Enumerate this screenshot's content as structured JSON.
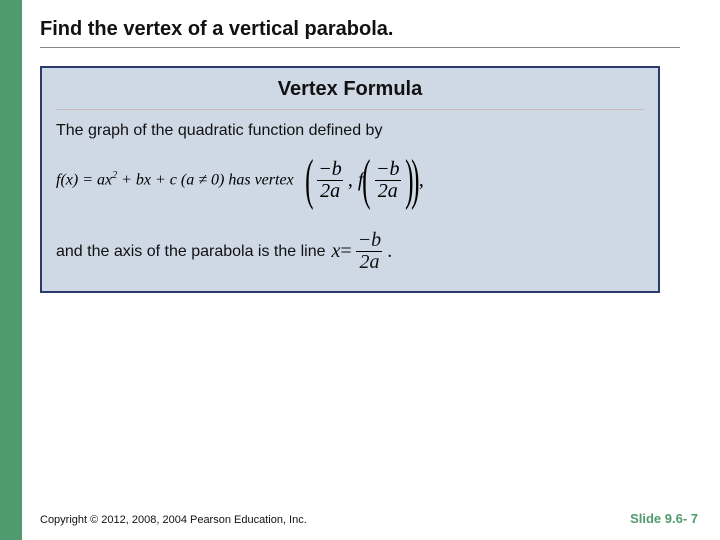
{
  "colors": {
    "accent_bar": "#4f9a6f",
    "box_bg": "#cfd9e6",
    "box_border": "#2a3a6a",
    "title_rule": "#c9b8b8",
    "text": "#111111",
    "slide_color": "#4f9a6f"
  },
  "title": "Find the vertex of a vertical parabola.",
  "box": {
    "heading": "Vertex Formula",
    "intro": "The graph of the quadratic function defined by",
    "func_prefix": "f(x) = ax",
    "func_suffix": " + bx + c (a ≠ 0) has vertex",
    "vertex": {
      "num1": "−b",
      "den1": "2a",
      "f_label": "f",
      "num2": "−b",
      "den2": "2a"
    },
    "axis_text": "and the axis of the parabola is the line",
    "axis_lhs": "x",
    "axis_eq": " = ",
    "axis_num": "−b",
    "axis_den": "2a"
  },
  "footer": "Copyright © 2012, 2008, 2004  Pearson Education, Inc.",
  "slide": "Slide 9.6- 7"
}
